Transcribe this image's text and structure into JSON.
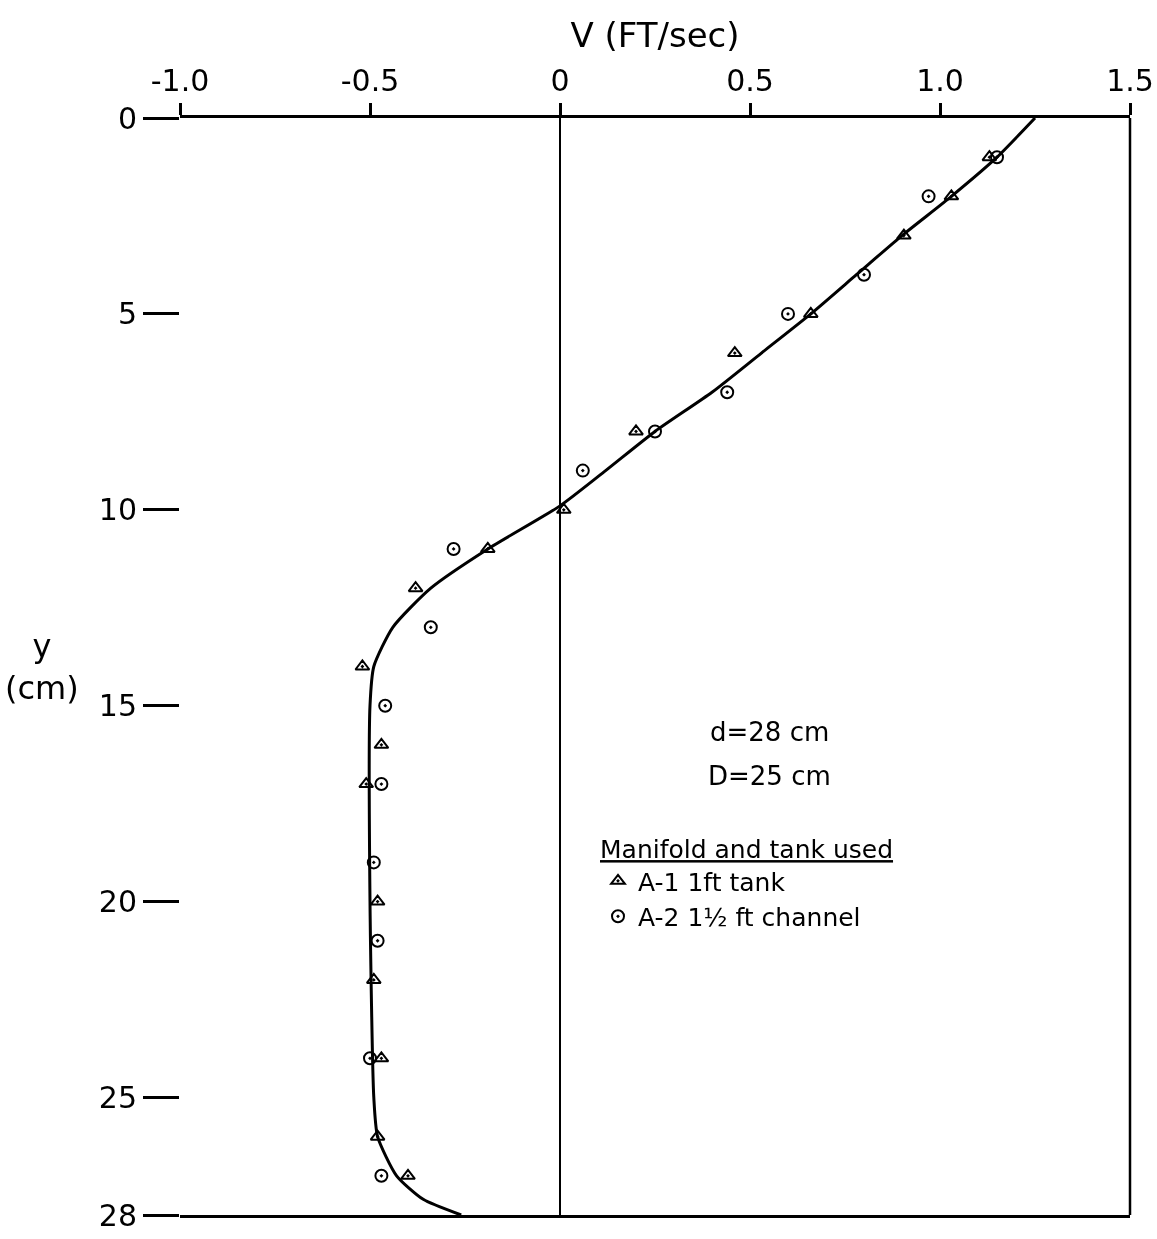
{
  "chart_data": {
    "type": "scatter",
    "xlabel": "V (FT/sec)",
    "ylabel": "y\n(cm)",
    "legend_title": "Manifold and tank used",
    "annotations": [
      "d=28 cm",
      "D=25 cm"
    ],
    "xlim": [
      -1,
      1.5
    ],
    "xticks": [
      {
        "value": -1,
        "label": "-1.0"
      },
      -0.5,
      0,
      0.5,
      {
        "value": 1,
        "label": "1.0"
      },
      1.5
    ],
    "ylim": [
      28,
      0
    ],
    "yticks": [
      0,
      5,
      10,
      15,
      20,
      25,
      28
    ],
    "grid": false,
    "legend": "right",
    "ref_lines": [
      {
        "axis": "x",
        "value": 0,
        "color": "#000000"
      }
    ],
    "series": [
      {
        "name": "A-1 1ft tank",
        "color": "#000000",
        "marker": "triangle",
        "x": [
          1.13,
          1.03,
          0.905,
          0.66,
          0.46,
          0.2,
          0.01,
          -0.19,
          -0.38,
          -0.52,
          -0.47,
          -0.51,
          -0.48,
          -0.49,
          -0.47,
          -0.48,
          -0.4
        ],
        "values": [
          1,
          2,
          3,
          5,
          6,
          8,
          10,
          11,
          12,
          14,
          16,
          17,
          20,
          22,
          24,
          26,
          27
        ]
      },
      {
        "name": "A-2 1½ ft channel",
        "color": "#000000",
        "marker": "circle",
        "x": [
          1.15,
          0.97,
          0.8,
          0.6,
          0.44,
          0.25,
          0.06,
          -0.28,
          -0.34,
          -0.46,
          -0.47,
          -0.49,
          -0.48,
          -0.5,
          -0.47
        ],
        "values": [
          1,
          2,
          4,
          5,
          7,
          8,
          9,
          11,
          13,
          15,
          17,
          19,
          21,
          24,
          27
        ]
      },
      {
        "type": "line",
        "color": "#000000",
        "marker": "none",
        "line_style": "solid",
        "x": [
          1.25,
          1.15,
          1.03,
          0.9,
          0.78,
          0.66,
          0.53,
          0.4,
          0.25,
          0.12,
          0,
          -0.19,
          -0.34,
          -0.44,
          -0.49,
          -0.5,
          -0.5,
          -0.49,
          -0.48,
          -0.43,
          -0.36,
          -0.26
        ],
        "values": [
          0,
          1,
          2,
          3,
          4,
          5,
          6,
          7,
          8,
          9,
          9.9,
          11,
          12,
          13,
          14,
          15,
          20,
          25,
          26,
          27,
          27.6,
          28
        ]
      }
    ]
  }
}
